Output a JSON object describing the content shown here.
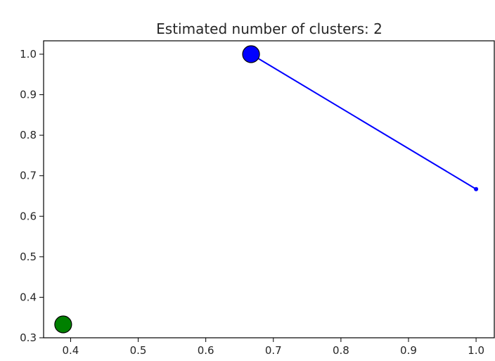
{
  "chart_data": {
    "type": "scatter",
    "title": "Estimated number of clusters: 2",
    "xlabel": "",
    "ylabel": "",
    "xlim": [
      0.36,
      1.028
    ],
    "ylim": [
      0.3,
      1.033
    ],
    "xticks": [
      "0.4",
      "0.5",
      "0.6",
      "0.7",
      "0.8",
      "0.9",
      "1.0"
    ],
    "xtick_values": [
      0.4,
      0.5,
      0.6,
      0.7,
      0.8,
      0.9,
      1.0
    ],
    "yticks": [
      "0.3",
      "0.4",
      "0.5",
      "0.6",
      "0.7",
      "0.8",
      "0.9",
      "1.0"
    ],
    "ytick_values": [
      0.3,
      0.4,
      0.5,
      0.6,
      0.7,
      0.8,
      0.9,
      1.0
    ],
    "grid": false,
    "clusters": [
      {
        "color": "#0000ff",
        "center": {
          "x": 0.667,
          "y": 1.0
        },
        "members": [
          {
            "x": 1.0,
            "y": 0.667
          }
        ]
      },
      {
        "color": "#008000",
        "center": {
          "x": 0.389,
          "y": 0.333
        },
        "members": []
      }
    ]
  }
}
